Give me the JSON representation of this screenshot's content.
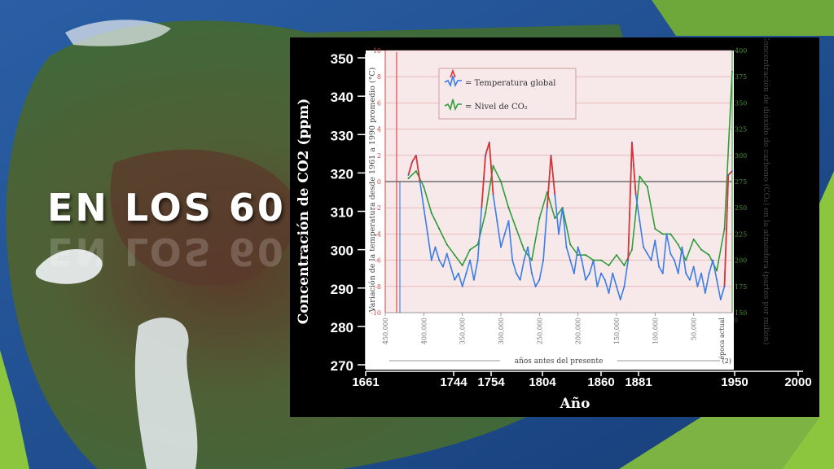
{
  "slide": {
    "title": "EN LOS 60",
    "colors": {
      "accent_green": "#8cc63f",
      "sea_blue": "#1e4d8a",
      "land": "#4a6a3a"
    }
  },
  "chart_data": {
    "type": "line",
    "title": "",
    "legend": {
      "placement": "top-left",
      "entries": [
        {
          "label": "= Temperatura global",
          "color": "#3a7ee8"
        },
        {
          "label": "= Nivel de CO₂",
          "color": "#2f9e3a"
        }
      ]
    },
    "outer_axes": {
      "ylabel": "Concentración de CO2 (ppm)",
      "ylim": [
        270,
        350
      ],
      "yticks": [
        "270",
        "280",
        "290",
        "300",
        "310",
        "320",
        "330",
        "340",
        "350"
      ],
      "xlabel": "Año",
      "xticks": [
        "1661",
        "1744",
        "1754",
        "1804",
        "1860",
        "1881",
        "1950",
        "2000"
      ]
    },
    "inner_axes": {
      "left_ylabel": "Variación de la temperatura desde 1961 a 1990 promedio (°C)",
      "left_ylim": [
        -10,
        10
      ],
      "left_yticks": [
        "-10",
        "-8",
        "-6",
        "-4",
        "-2",
        "0",
        "2",
        "4",
        "6",
        "8",
        "10"
      ],
      "right_ylabel": "Concentración de dióxido de carbono (CO₂) en la atmósfera (partes por millón)",
      "right_ylim": [
        150,
        400
      ],
      "right_yticks": [
        "150",
        "175",
        "200",
        "225",
        "250",
        "275",
        "300",
        "325",
        "350",
        "375",
        "400"
      ],
      "xlabel": "años antes del presente",
      "xlim": [
        -450000,
        0
      ],
      "xticks": [
        "450,000",
        "400,000",
        "350,000",
        "300,000",
        "250,000",
        "200,000",
        "150,000",
        "100,000",
        "50,000"
      ],
      "present_label": "época actual",
      "present_value": "0",
      "footnote": "(2)"
    },
    "series": [
      {
        "name": "Temperatura global",
        "x": [
          -420000,
          -415000,
          -410000,
          -405000,
          -400000,
          -395000,
          -390000,
          -385000,
          -380000,
          -375000,
          -370000,
          -365000,
          -360000,
          -355000,
          -350000,
          -345000,
          -340000,
          -335000,
          -330000,
          -325000,
          -320000,
          -315000,
          -310000,
          -305000,
          -300000,
          -295000,
          -290000,
          -285000,
          -280000,
          -275000,
          -270000,
          -265000,
          -260000,
          -255000,
          -250000,
          -245000,
          -240000,
          -235000,
          -230000,
          -225000,
          -220000,
          -215000,
          -210000,
          -205000,
          -200000,
          -195000,
          -190000,
          -185000,
          -180000,
          -175000,
          -170000,
          -165000,
          -160000,
          -155000,
          -150000,
          -145000,
          -140000,
          -135000,
          -130000,
          -125000,
          -120000,
          -115000,
          -110000,
          -105000,
          -100000,
          -95000,
          -90000,
          -85000,
          -80000,
          -75000,
          -70000,
          -65000,
          -60000,
          -55000,
          -50000,
          -45000,
          -40000,
          -35000,
          -30000,
          -25000,
          -20000,
          -15000,
          -10000,
          -5000,
          0
        ],
        "values": [
          0.5,
          1.5,
          2,
          0,
          -2,
          -4,
          -6,
          -5,
          -6,
          -6.5,
          -5.5,
          -6.5,
          -7.5,
          -7,
          -8,
          -7,
          -6,
          -7.5,
          -6,
          -2,
          2,
          3,
          -1,
          -3,
          -5,
          -4,
          -3,
          -6,
          -7,
          -7.5,
          -6,
          -5,
          -7,
          -8,
          -7.5,
          -6,
          -2,
          2,
          -1,
          -4,
          -2,
          -5,
          -6,
          -7,
          -5,
          -6,
          -7.5,
          -7,
          -6,
          -8,
          -7,
          -7.5,
          -8.5,
          -7,
          -8,
          -9,
          -8,
          -6,
          3,
          -1,
          -3,
          -5,
          -5.5,
          -6,
          -4.5,
          -6.5,
          -7,
          -4,
          -5.5,
          -6,
          -7,
          -5,
          -7,
          -7.5,
          -6.5,
          -8,
          -7,
          -8.5,
          -7,
          -6,
          -7.5,
          -9,
          -8,
          0.5,
          0.8
        ]
      },
      {
        "name": "Nivel de CO₂",
        "x": [
          -420000,
          -410000,
          -400000,
          -390000,
          -380000,
          -370000,
          -360000,
          -350000,
          -340000,
          -330000,
          -320000,
          -310000,
          -300000,
          -290000,
          -280000,
          -270000,
          -260000,
          -250000,
          -240000,
          -230000,
          -220000,
          -210000,
          -200000,
          -190000,
          -180000,
          -170000,
          -160000,
          -150000,
          -140000,
          -130000,
          -120000,
          -110000,
          -100000,
          -90000,
          -80000,
          -70000,
          -60000,
          -50000,
          -40000,
          -30000,
          -20000,
          -10000,
          0
        ],
        "values": [
          278,
          285,
          270,
          245,
          230,
          215,
          205,
          195,
          210,
          215,
          245,
          290,
          275,
          250,
          230,
          210,
          200,
          240,
          265,
          240,
          250,
          215,
          205,
          205,
          200,
          200,
          195,
          205,
          195,
          210,
          280,
          270,
          230,
          225,
          225,
          215,
          200,
          220,
          210,
          205,
          190,
          230,
          380
        ]
      }
    ]
  }
}
